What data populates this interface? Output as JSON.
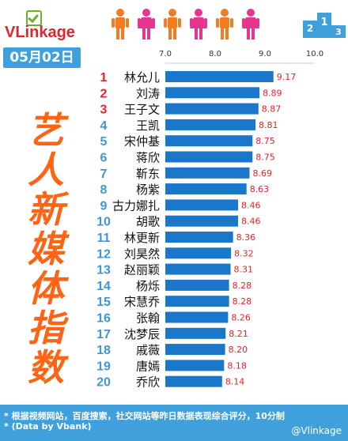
{
  "brand": {
    "logo_text": "VLinkage"
  },
  "date": "05月02日",
  "side_title": [
    "艺",
    "人",
    "新",
    "媒",
    "体",
    "指",
    "数"
  ],
  "colors": {
    "accent_blue": "#3fa0dc",
    "bar_blue": "#1a77c9",
    "title_orange": "#ff6414",
    "top_rank_red": "#e0242c",
    "rank_blue": "#3f97d2",
    "value_red": "#e0242c",
    "male_orange": "#f47c20",
    "female_pink": "#e6358f"
  },
  "people_icons": [
    "male-icon",
    "female-icon",
    "male-icon",
    "female-icon",
    "male-icon",
    "female-icon"
  ],
  "chart_data": {
    "type": "bar",
    "orientation": "horizontal",
    "xlim": [
      7.0,
      10.0
    ],
    "x_ticks": [
      "7.0",
      "8.0",
      "9.0",
      "10.0"
    ],
    "x_tick_values": [
      7.0,
      8.0,
      9.0,
      10.0
    ],
    "categories": [
      "林允儿",
      "刘涛",
      "王子文",
      "王凯",
      "宋仲基",
      "蒋欣",
      "靳东",
      "杨紫",
      "古力娜扎",
      "胡歌",
      "林更新",
      "刘昊然",
      "赵丽颖",
      "杨烁",
      "宋慧乔",
      "张翰",
      "沈梦辰",
      "戚薇",
      "唐嫣",
      "乔欣"
    ],
    "ranks": [
      "1",
      "2",
      "3",
      "4",
      "5",
      "6",
      "7",
      "8",
      "9",
      "10",
      "11",
      "12",
      "13",
      "14",
      "15",
      "16",
      "17",
      "18",
      "19",
      "20"
    ],
    "values": [
      9.17,
      8.89,
      8.87,
      8.81,
      8.75,
      8.75,
      8.69,
      8.63,
      8.46,
      8.46,
      8.36,
      8.32,
      8.31,
      8.28,
      8.28,
      8.26,
      8.21,
      8.2,
      8.18,
      8.14
    ],
    "value_labels": [
      "9.17",
      "8.89",
      "8.87",
      "8.81",
      "8.75",
      "8.75",
      "8.69",
      "8.63",
      "8.46",
      "8.46",
      "8.36",
      "8.32",
      "8.31",
      "8.28",
      "8.28",
      "8.26",
      "8.21",
      "8.20",
      "8.18",
      "8.14"
    ],
    "grid": false
  },
  "footer": {
    "note": "* 根据视频网站，百度搜索，社交网站等昨日数据表现综合评分，10分制",
    "source": "* (Data by Vbank)",
    "credit": "@Vlinkage"
  }
}
